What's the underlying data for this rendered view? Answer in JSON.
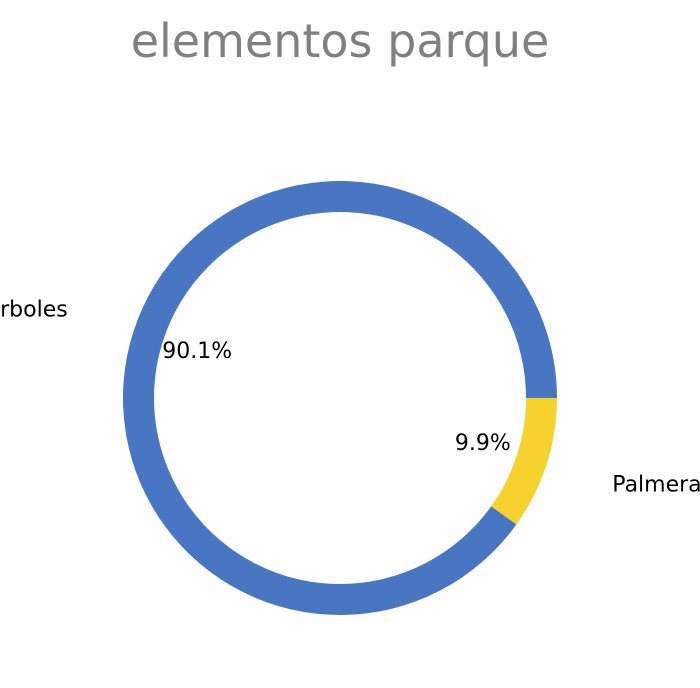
{
  "chart_data": {
    "type": "pie",
    "style": "donut",
    "title": "elementos parque",
    "start": "east",
    "direction": "clockwise",
    "slices": [
      {
        "label": "Palmeras",
        "value": 9.9,
        "value_label": "9.9%",
        "color": "#F5D22D"
      },
      {
        "label": "Arboles",
        "value": 90.1,
        "value_label": "90.1%",
        "color": "#4876C2"
      }
    ]
  }
}
